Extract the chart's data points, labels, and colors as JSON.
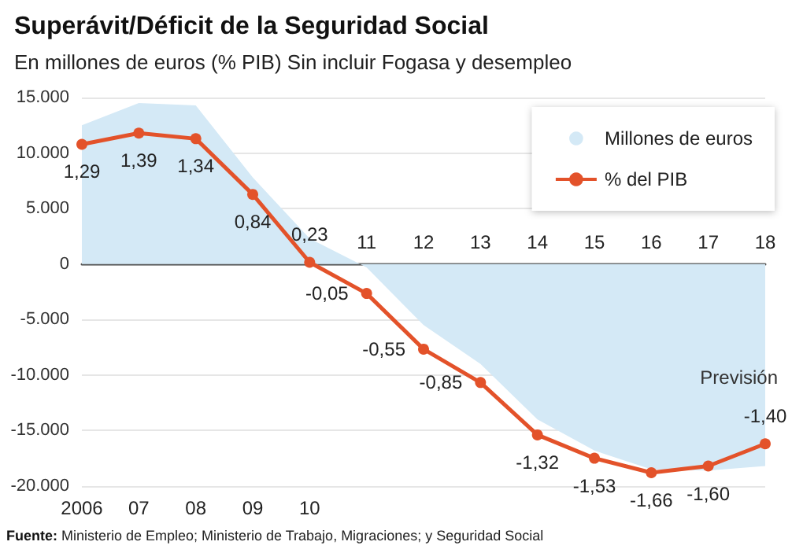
{
  "chart_data": {
    "type": "area",
    "title": "Superávit/Déficit de la Seguridad Social",
    "subtitle": "En millones de euros (% PIB) Sin incluir Fogasa y desempleo",
    "categories": [
      "2006",
      "07",
      "08",
      "09",
      "10",
      "11",
      "12",
      "13",
      "14",
      "15",
      "16",
      "17",
      "18"
    ],
    "series": [
      {
        "name": "Millones de euros",
        "color": "#d4e9f6",
        "values": [
          12500,
          14500,
          14300,
          7800,
          2300,
          -300,
          -5500,
          -9000,
          -14000,
          -16800,
          -18500,
          -18600,
          -18200
        ]
      },
      {
        "name": "% del PIB",
        "type": "line",
        "axis": "y2",
        "color": "#e3522a",
        "marker": "circle",
        "values": [
          1.29,
          1.39,
          1.34,
          0.84,
          0.23,
          -0.05,
          -0.55,
          -0.85,
          -1.32,
          -1.53,
          -1.66,
          -1.6,
          -1.4
        ],
        "value_labels": [
          "1,29",
          "1,39",
          "1,34",
          "0,84",
          "0,23",
          "-0,05",
          "-0,55",
          "-0,85",
          "-1,32",
          "-1,53",
          "-1,66",
          "-1,60",
          "-1,40"
        ]
      }
    ],
    "ylim": [
      -20000,
      15000
    ],
    "yticks": [
      {
        "value": -20000,
        "label": "-20.000"
      },
      {
        "value": -15000,
        "label": "-15.000"
      },
      {
        "value": -10000,
        "label": "-10.000"
      },
      {
        "value": -5000,
        "label": "-5.000"
      },
      0,
      {
        "value": 5000,
        "label": "5.000"
      },
      {
        "value": 10000,
        "label": "10.000"
      },
      {
        "value": 15000,
        "label": "15.000"
      }
    ],
    "y2lim": [
      -1.78,
      1.71
    ],
    "tick_labels": "xy",
    "grid": "y",
    "legend": "top right",
    "annotations": [
      "Previsión",
      "Fuente: Ministerio de Empleo; Ministerio de Trabajo, Migraciones; y Seguridad Social"
    ]
  }
}
